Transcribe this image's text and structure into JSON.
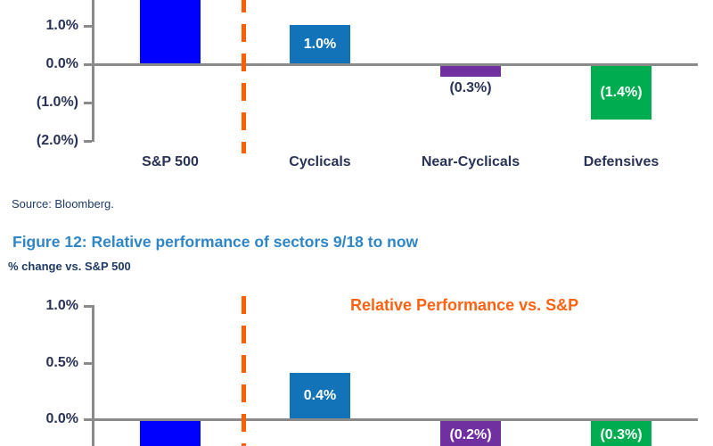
{
  "source_note": "Source: Bloomberg.",
  "figure_heading": "Figure 12: Relative performance of sectors 9/18 to now",
  "figure_subtitle": "% change vs. S&P 500",
  "colors": {
    "sp500_bar": "#0000fe",
    "cyclicals_bar": "#1273b8",
    "near_cyclicals_bar": "#7030a0",
    "defensives_bar": "#00ac50",
    "divider_line": "#ff5e00",
    "chart2_title_orange": "#ff6212",
    "heading_blue": "#2f86c7",
    "axis_gray": "#8a8a8a",
    "chart_text": "#2a3356",
    "note_text": "#1e3b66"
  },
  "chart_data": [
    {
      "id": "chart-top",
      "type": "bar",
      "title": "",
      "ylabel": "",
      "grid": false,
      "yticks": [
        {
          "label": "1.0%",
          "value": 1.0
        },
        {
          "label": "0.0%",
          "value": 0.0
        },
        {
          "label": "(1.0%)",
          "value": -1.0
        },
        {
          "label": "(2.0%)",
          "value": -2.0
        }
      ],
      "ylim_visible": [
        -2.0,
        1.7
      ],
      "divider_after_first_category": true,
      "show_category_labels": true,
      "bars": [
        {
          "category": "S&P 500",
          "value": null,
          "value_label": "",
          "color_key": "sp500_bar",
          "cut_off_at_screenshot_edge": true,
          "direction": "up"
        },
        {
          "category": "Cyclicals",
          "value": 1.0,
          "value_label": "1.0%",
          "color_key": "cyclicals_bar",
          "label_style": "inside-white"
        },
        {
          "category": "Near-Cyclicals",
          "value": -0.3,
          "value_label": "(0.3%)",
          "color_key": "near_cyclicals_bar",
          "label_style": "below-dark"
        },
        {
          "category": "Defensives",
          "value": -1.4,
          "value_label": "(1.4%)",
          "color_key": "defensives_bar",
          "label_style": "inside-white"
        }
      ]
    },
    {
      "id": "chart-bottom",
      "type": "bar",
      "title": "Relative Performance vs. S&P",
      "ylabel": "",
      "grid": false,
      "yticks": [
        {
          "label": "1.0%",
          "value": 1.0
        },
        {
          "label": "0.5%",
          "value": 0.5
        },
        {
          "label": "0.0%",
          "value": 0.0
        }
      ],
      "ylim_visible": [
        -0.25,
        1.0
      ],
      "divider_after_first_category": true,
      "show_category_labels": false,
      "bars": [
        {
          "category": "S&P 500",
          "value": null,
          "value_label": "",
          "color_key": "sp500_bar",
          "cut_off_at_screenshot_edge": true,
          "direction": "down"
        },
        {
          "category": "Cyclicals",
          "value": 0.4,
          "value_label": "0.4%",
          "color_key": "cyclicals_bar",
          "label_style": "inside-white"
        },
        {
          "category": "Near-Cyclicals",
          "value": -0.2,
          "value_label": "(0.2%)",
          "color_key": "near_cyclicals_bar",
          "label_style": "inside-white",
          "cut_off_at_screenshot_edge": true,
          "direction": "down"
        },
        {
          "category": "Defensives",
          "value": -0.3,
          "value_label": "(0.3%)",
          "color_key": "defensives_bar",
          "label_style": "inside-white",
          "cut_off_at_screenshot_edge": true,
          "direction": "down"
        }
      ]
    }
  ]
}
